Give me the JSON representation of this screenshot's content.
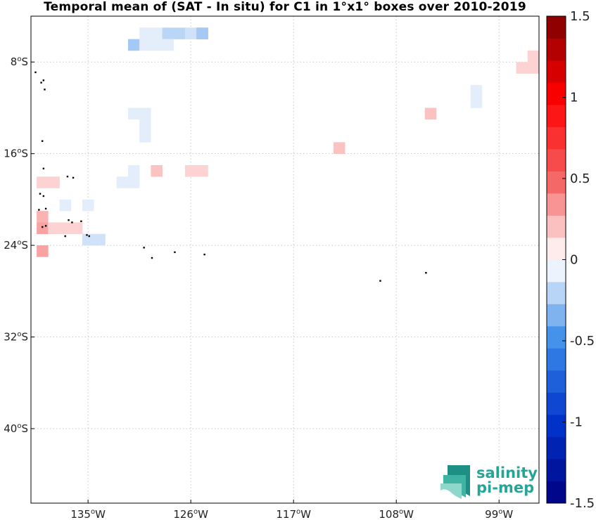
{
  "title": "Temporal mean of (SAT - In situ) for C1 in 1°x1° boxes over 2010-2019",
  "map": {
    "lon_range": [
      -140,
      -95.5
    ],
    "lat_range": [
      -46.5,
      -4
    ],
    "lon_ticks": [
      {
        "value": -135,
        "deg": "135",
        "hem": "W"
      },
      {
        "value": -126,
        "deg": "126",
        "hem": "W"
      },
      {
        "value": -117,
        "deg": "117",
        "hem": "W"
      },
      {
        "value": -108,
        "deg": "108",
        "hem": "W"
      },
      {
        "value": -99,
        "deg": "99",
        "hem": "W"
      }
    ],
    "lat_ticks": [
      {
        "value": -8,
        "deg": "8",
        "hem": "S"
      },
      {
        "value": -16,
        "deg": "16",
        "hem": "S"
      },
      {
        "value": -24,
        "deg": "24",
        "hem": "S"
      },
      {
        "value": -32,
        "deg": "32",
        "hem": "S"
      },
      {
        "value": -40,
        "deg": "40",
        "hem": "S"
      }
    ],
    "grid": true,
    "boxes": [
      {
        "lon": -130,
        "lat": -5.5,
        "value": -0.1
      },
      {
        "lon": -129,
        "lat": -5.5,
        "value": -0.1
      },
      {
        "lon": -128,
        "lat": -5.5,
        "value": -0.2
      },
      {
        "lon": -127,
        "lat": -5.5,
        "value": -0.2
      },
      {
        "lon": -126,
        "lat": -5.5,
        "value": -0.15
      },
      {
        "lon": -125,
        "lat": -5.5,
        "value": -0.25
      },
      {
        "lon": -125,
        "lat": -5.5,
        "value": -0.25
      },
      {
        "lon": -131,
        "lat": -6.5,
        "value": -0.25
      },
      {
        "lon": -130,
        "lat": -6.5,
        "value": -0.1
      },
      {
        "lon": -129,
        "lat": -6.5,
        "value": -0.1
      },
      {
        "lon": -128,
        "lat": -6.5,
        "value": -0.1
      },
      {
        "lon": -96,
        "lat": -7.5,
        "value": 0.15
      },
      {
        "lon": -97,
        "lat": -8.5,
        "value": 0.15
      },
      {
        "lon": -96,
        "lat": -8.5,
        "value": 0.15
      },
      {
        "lon": -101,
        "lat": -10.5,
        "value": -0.1
      },
      {
        "lon": -101,
        "lat": -11.5,
        "value": -0.1
      },
      {
        "lon": -105,
        "lat": -12.5,
        "value": 0.2
      },
      {
        "lon": -131,
        "lat": -12.5,
        "value": -0.1
      },
      {
        "lon": -130,
        "lat": -12.5,
        "value": -0.1
      },
      {
        "lon": -130,
        "lat": -13.5,
        "value": -0.1
      },
      {
        "lon": -130,
        "lat": -14.5,
        "value": -0.1
      },
      {
        "lon": -113,
        "lat": -15.5,
        "value": 0.2
      },
      {
        "lon": -129,
        "lat": -17.5,
        "value": 0.2
      },
      {
        "lon": -126,
        "lat": -17.5,
        "value": 0.15
      },
      {
        "lon": -125,
        "lat": -17.5,
        "value": 0.15
      },
      {
        "lon": -131,
        "lat": -17.5,
        "value": -0.1
      },
      {
        "lon": -132,
        "lat": -18.5,
        "value": -0.1
      },
      {
        "lon": -131,
        "lat": -18.5,
        "value": -0.1
      },
      {
        "lon": -139,
        "lat": -18.5,
        "value": 0.15
      },
      {
        "lon": -138,
        "lat": -18.5,
        "value": 0.15
      },
      {
        "lon": -137,
        "lat": -20.5,
        "value": -0.1
      },
      {
        "lon": -135,
        "lat": -20.5,
        "value": -0.1
      },
      {
        "lon": -139,
        "lat": -21.5,
        "value": 0.25
      },
      {
        "lon": -139,
        "lat": -22.5,
        "value": 0.3
      },
      {
        "lon": -138,
        "lat": -22.5,
        "value": 0.15
      },
      {
        "lon": -137,
        "lat": -22.5,
        "value": 0.15
      },
      {
        "lon": -136,
        "lat": -22.5,
        "value": 0.15
      },
      {
        "lon": -135,
        "lat": -23.5,
        "value": -0.15
      },
      {
        "lon": -134,
        "lat": -23.5,
        "value": -0.15
      },
      {
        "lon": -139,
        "lat": -24.5,
        "value": 0.3
      }
    ],
    "islands": [
      {
        "lon": -139.6,
        "lat": -8.9
      },
      {
        "lon": -139.1,
        "lat": -9.8
      },
      {
        "lon": -138.9,
        "lat": -9.6
      },
      {
        "lon": -138.8,
        "lat": -10.4
      },
      {
        "lon": -139.0,
        "lat": -14.9
      },
      {
        "lon": -138.9,
        "lat": -17.3
      },
      {
        "lon": -136.8,
        "lat": -18.0
      },
      {
        "lon": -136.3,
        "lat": -18.1
      },
      {
        "lon": -139.2,
        "lat": -19.5
      },
      {
        "lon": -138.9,
        "lat": -19.7
      },
      {
        "lon": -139.3,
        "lat": -20.9
      },
      {
        "lon": -138.7,
        "lat": -20.8
      },
      {
        "lon": -136.7,
        "lat": -21.8
      },
      {
        "lon": -136.4,
        "lat": -22.0
      },
      {
        "lon": -135.6,
        "lat": -21.9
      },
      {
        "lon": -138.7,
        "lat": -22.3
      },
      {
        "lon": -139.0,
        "lat": -22.4
      },
      {
        "lon": -135.1,
        "lat": -23.1
      },
      {
        "lon": -137.0,
        "lat": -23.2
      },
      {
        "lon": -134.9,
        "lat": -23.2
      },
      {
        "lon": -130.1,
        "lat": -24.2
      },
      {
        "lon": -129.4,
        "lat": -25.1
      },
      {
        "lon": -127.4,
        "lat": -24.6
      },
      {
        "lon": -124.8,
        "lat": -24.8
      },
      {
        "lon": -109.4,
        "lat": -27.1
      },
      {
        "lon": -105.4,
        "lat": -26.4
      }
    ]
  },
  "colorbar": {
    "min": -1.5,
    "max": 1.5,
    "levels": 22,
    "ticks": [
      {
        "value": 1.5,
        "label": "1.5"
      },
      {
        "value": 1,
        "label": "1"
      },
      {
        "value": 0.5,
        "label": "0.5"
      },
      {
        "value": 0,
        "label": "0"
      },
      {
        "value": -0.5,
        "label": "-0.5"
      },
      {
        "value": -1,
        "label": "-1"
      },
      {
        "value": -1.5,
        "label": "-1.5"
      }
    ],
    "stops": [
      {
        "v": -1.5,
        "c": "#00007f"
      },
      {
        "v": -1.0,
        "c": "#0033cc"
      },
      {
        "v": -0.5,
        "c": "#3a8ce8"
      },
      {
        "v": -0.1,
        "c": "#e4eefb"
      },
      {
        "v": 0.0,
        "c": "#ffffff"
      },
      {
        "v": 0.1,
        "c": "#fde2e2"
      },
      {
        "v": 0.5,
        "c": "#f46161"
      },
      {
        "v": 1.0,
        "c": "#ff0000"
      },
      {
        "v": 1.5,
        "c": "#7f0000"
      }
    ]
  },
  "logo": {
    "line1": "salinity",
    "line2": "pi-mep",
    "icon": "salinity-waves-icon",
    "color": "#25a596"
  }
}
